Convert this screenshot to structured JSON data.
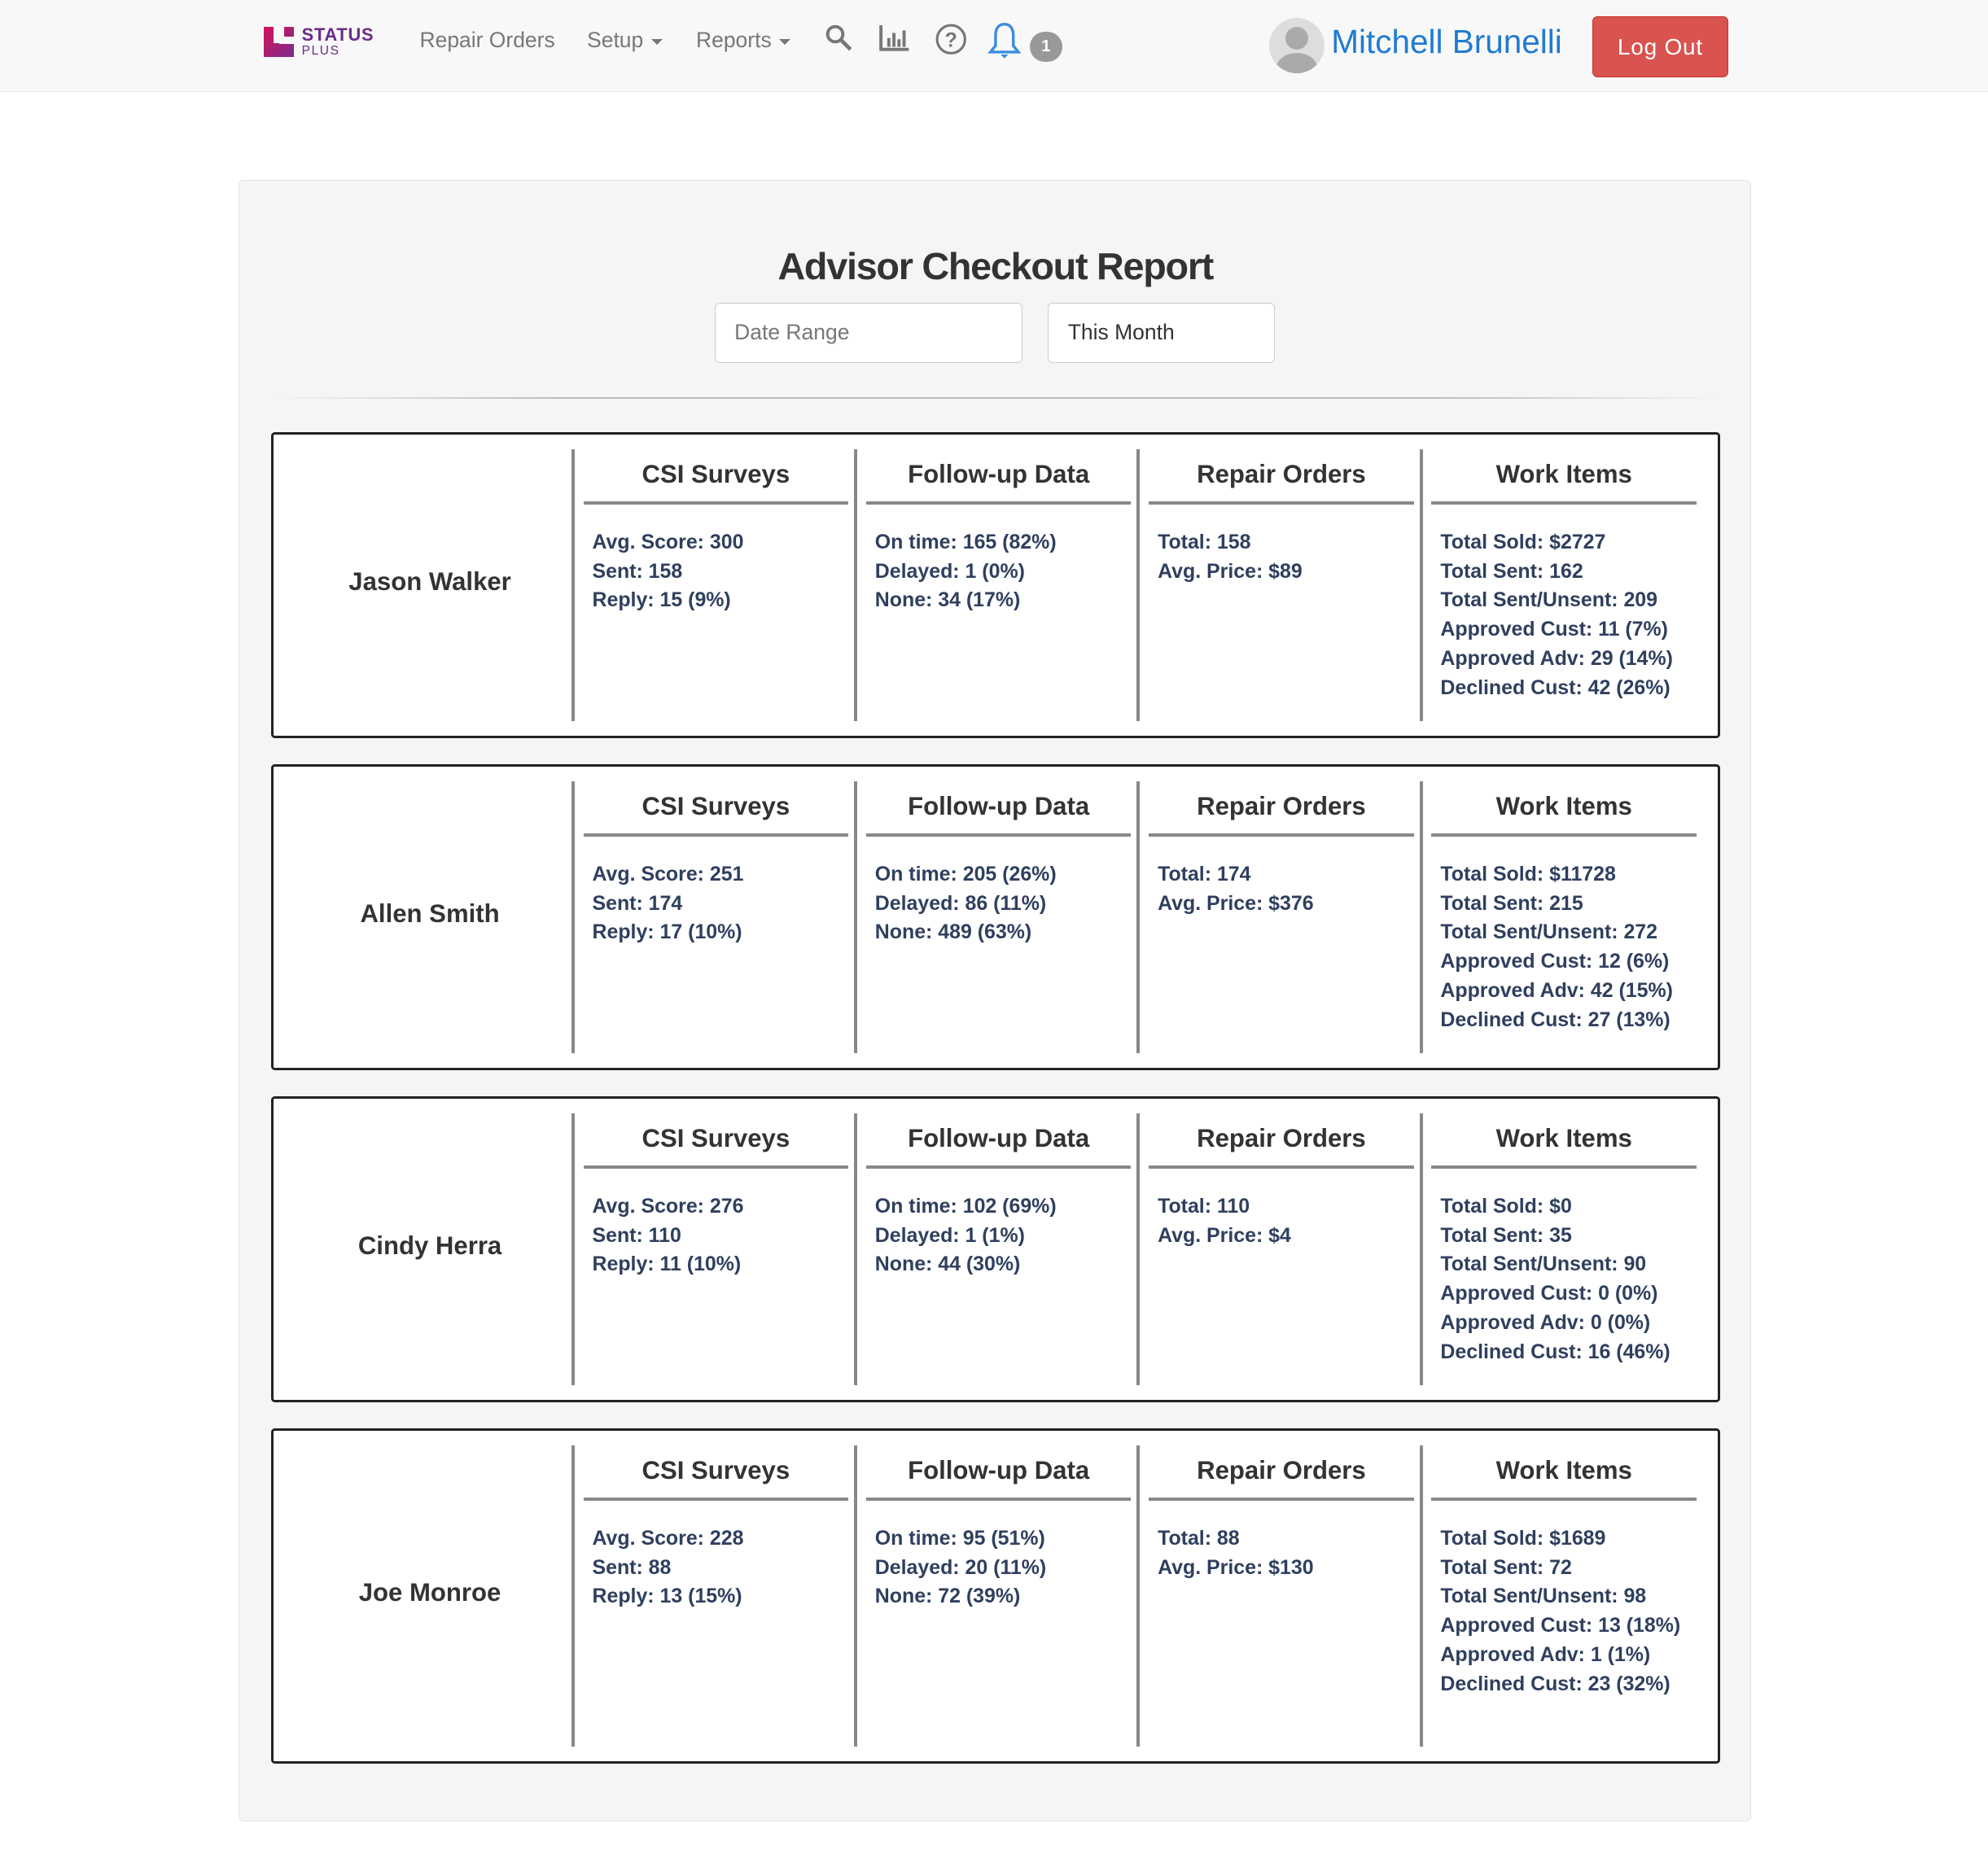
{
  "nav": {
    "logo": {
      "line1": "STATUS",
      "line2": "PLUS"
    },
    "links": [
      "Repair Orders",
      "Setup",
      "Reports"
    ],
    "icons": [
      "search-icon",
      "bar-chart-icon",
      "help-icon",
      "bell-icon"
    ],
    "notification_count": "1",
    "user_name": "Mitchell Brunelli",
    "logout_label": "Log Out"
  },
  "page": {
    "title": "Advisor Checkout Report",
    "date_range_placeholder": "Date Range",
    "period_value": "This Month"
  },
  "columns": [
    "CSI Surveys",
    "Follow-up Data",
    "Repair Orders",
    "Work Items"
  ],
  "advisors": [
    {
      "name": "Jason Walker",
      "csi": [
        "Avg. Score: 300",
        "Sent: 158",
        "Reply: 15 (9%)"
      ],
      "followup": [
        "On time: 165 (82%)",
        "Delayed: 1 (0%)",
        "None: 34 (17%)"
      ],
      "repair": [
        "Total: 158",
        "Avg. Price: $89"
      ],
      "work": [
        "Total Sold: $2727",
        "Total Sent: 162",
        "Total Sent/Unsent: 209",
        "Approved Cust: 11 (7%)",
        "Approved Adv: 29 (14%)",
        "Declined Cust: 42 (26%)"
      ]
    },
    {
      "name": "Allen Smith",
      "csi": [
        "Avg. Score: 251",
        "Sent: 174",
        "Reply: 17 (10%)"
      ],
      "followup": [
        "On time: 205 (26%)",
        "Delayed: 86 (11%)",
        "None: 489 (63%)"
      ],
      "repair": [
        "Total: 174",
        "Avg. Price: $376"
      ],
      "work": [
        "Total Sold: $11728",
        "Total Sent: 215",
        "Total Sent/Unsent: 272",
        "Approved Cust: 12 (6%)",
        "Approved Adv: 42 (15%)",
        "Declined Cust: 27 (13%)"
      ]
    },
    {
      "name": "Cindy Herra",
      "csi": [
        "Avg. Score: 276",
        "Sent: 110",
        "Reply: 11 (10%)"
      ],
      "followup": [
        "On time: 102 (69%)",
        "Delayed: 1 (1%)",
        "None: 44 (30%)"
      ],
      "repair": [
        "Total: 110",
        "Avg. Price: $4"
      ],
      "work": [
        "Total Sold: $0",
        "Total Sent: 35",
        "Total Sent/Unsent: 90",
        "Approved Cust: 0 (0%)",
        "Approved Adv: 0 (0%)",
        "Declined Cust: 16 (46%)"
      ]
    },
    {
      "name": "Joe Monroe",
      "csi": [
        "Avg. Score: 228",
        "Sent: 88",
        "Reply: 13 (15%)"
      ],
      "followup": [
        "On time: 95 (51%)",
        "Delayed: 20 (11%)",
        "None: 72 (39%)"
      ],
      "repair": [
        "Total: 88",
        "Avg. Price: $130"
      ],
      "work": [
        "Total Sold: $1689",
        "Total Sent: 72",
        "Total Sent/Unsent: 98",
        "Approved Cust: 13 (18%)",
        "Approved Adv: 1 (1%)",
        "Declined Cust: 23 (32%)"
      ]
    }
  ],
  "colors": {
    "logout": "#d9534f",
    "user_name": "#1f7bd1",
    "bell": "#3a8dde",
    "stat_text": "#2f3f5e"
  }
}
